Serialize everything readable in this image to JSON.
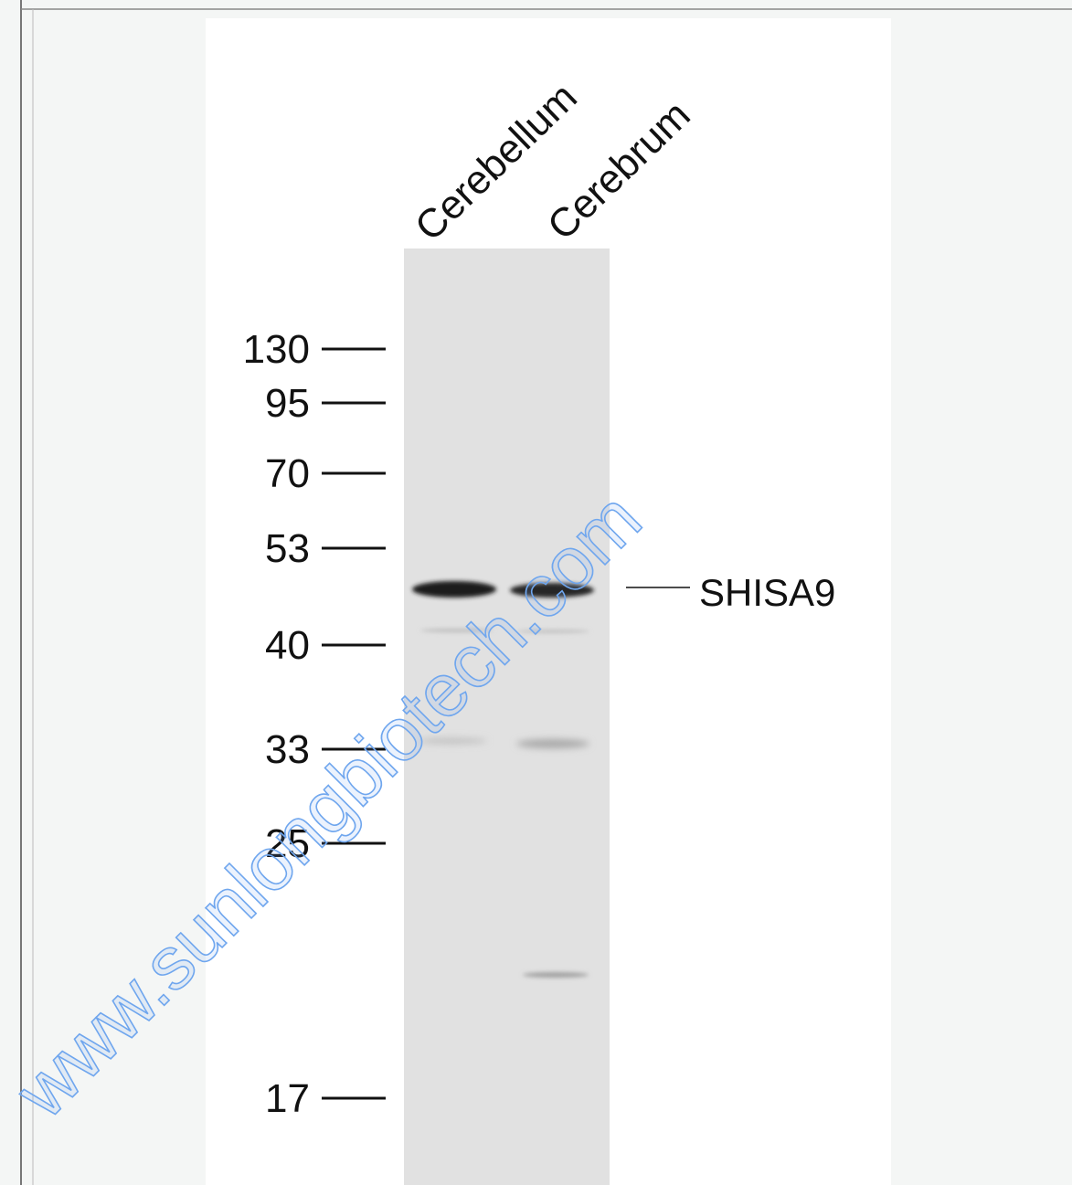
{
  "figure": {
    "lanes": [
      "Cerebellum",
      "Cerebrum"
    ],
    "markers": [
      130,
      95,
      70,
      53,
      40,
      33,
      25,
      17
    ],
    "target": "SHISA9",
    "watermark": "www.sunlongbiotech.com"
  }
}
